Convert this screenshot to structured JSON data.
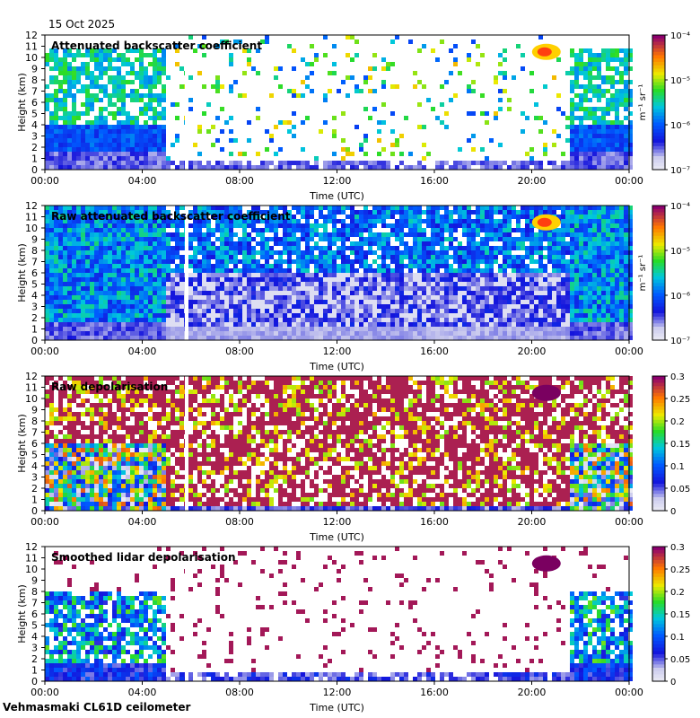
{
  "date_label": "15 Oct 2025",
  "footer_label": "Vehmasmaki CL61D ceilometer",
  "chart_data": [
    {
      "type": "heatmap",
      "title": "Attenuated backscatter coefficient",
      "xlabel": "Time (UTC)",
      "ylabel": "Height (km)",
      "xticks": [
        "00:00",
        "04:00",
        "08:00",
        "12:00",
        "16:00",
        "20:00",
        "00:00"
      ],
      "xlim_hours": [
        0,
        24
      ],
      "ylim": [
        0,
        12
      ],
      "yticks": [
        0,
        1,
        2,
        3,
        4,
        5,
        6,
        7,
        8,
        9,
        10,
        11,
        12
      ],
      "colorbar": {
        "scale": "log",
        "units": "m⁻¹ sr⁻¹",
        "tick_labels": [
          "10⁻⁷",
          "10⁻⁶",
          "10⁻⁵",
          "10⁻⁴"
        ],
        "tick_values": [
          1e-07,
          1e-06,
          1e-05,
          0.0001
        ]
      }
    },
    {
      "type": "heatmap",
      "title": "Raw attenuated backscatter coefficient",
      "xlabel": "Time (UTC)",
      "ylabel": "Height (km)",
      "xticks": [
        "00:00",
        "04:00",
        "08:00",
        "12:00",
        "16:00",
        "20:00",
        "00:00"
      ],
      "xlim_hours": [
        0,
        24
      ],
      "ylim": [
        0,
        12
      ],
      "yticks": [
        0,
        1,
        2,
        3,
        4,
        5,
        6,
        7,
        8,
        9,
        10,
        11,
        12
      ],
      "colorbar": {
        "scale": "log",
        "units": "m⁻¹ sr⁻¹",
        "tick_labels": [
          "10⁻⁷",
          "10⁻⁶",
          "10⁻⁵",
          "10⁻⁴"
        ],
        "tick_values": [
          1e-07,
          1e-06,
          1e-05,
          0.0001
        ]
      }
    },
    {
      "type": "heatmap",
      "title": "Raw depolarisation",
      "xlabel": "Time (UTC)",
      "ylabel": "Height (km)",
      "xticks": [
        "00:00",
        "04:00",
        "08:00",
        "12:00",
        "16:00",
        "20:00",
        "00:00"
      ],
      "xlim_hours": [
        0,
        24
      ],
      "ylim": [
        0,
        12
      ],
      "yticks": [
        0,
        1,
        2,
        3,
        4,
        5,
        6,
        7,
        8,
        9,
        10,
        11,
        12
      ],
      "colorbar": {
        "scale": "linear",
        "units": "",
        "tick_labels": [
          "0",
          "0.05",
          "0.1",
          "0.15",
          "0.2",
          "0.25",
          "0.3"
        ],
        "tick_values": [
          0,
          0.05,
          0.1,
          0.15,
          0.2,
          0.25,
          0.3
        ]
      }
    },
    {
      "type": "heatmap",
      "title": "Smoothed lidar depolarisation",
      "xlabel": "Time (UTC)",
      "ylabel": "Height (km)",
      "xticks": [
        "00:00",
        "04:00",
        "08:00",
        "12:00",
        "16:00",
        "20:00",
        "00:00"
      ],
      "xlim_hours": [
        0,
        24
      ],
      "ylim": [
        0,
        12
      ],
      "yticks": [
        0,
        1,
        2,
        3,
        4,
        5,
        6,
        7,
        8,
        9,
        10,
        11,
        12
      ],
      "colorbar": {
        "scale": "linear",
        "units": "",
        "tick_labels": [
          "0",
          "0.05",
          "0.1",
          "0.15",
          "0.2",
          "0.25",
          "0.3"
        ],
        "tick_values": [
          0,
          0.05,
          0.1,
          0.15,
          0.2,
          0.25,
          0.3
        ]
      }
    }
  ]
}
